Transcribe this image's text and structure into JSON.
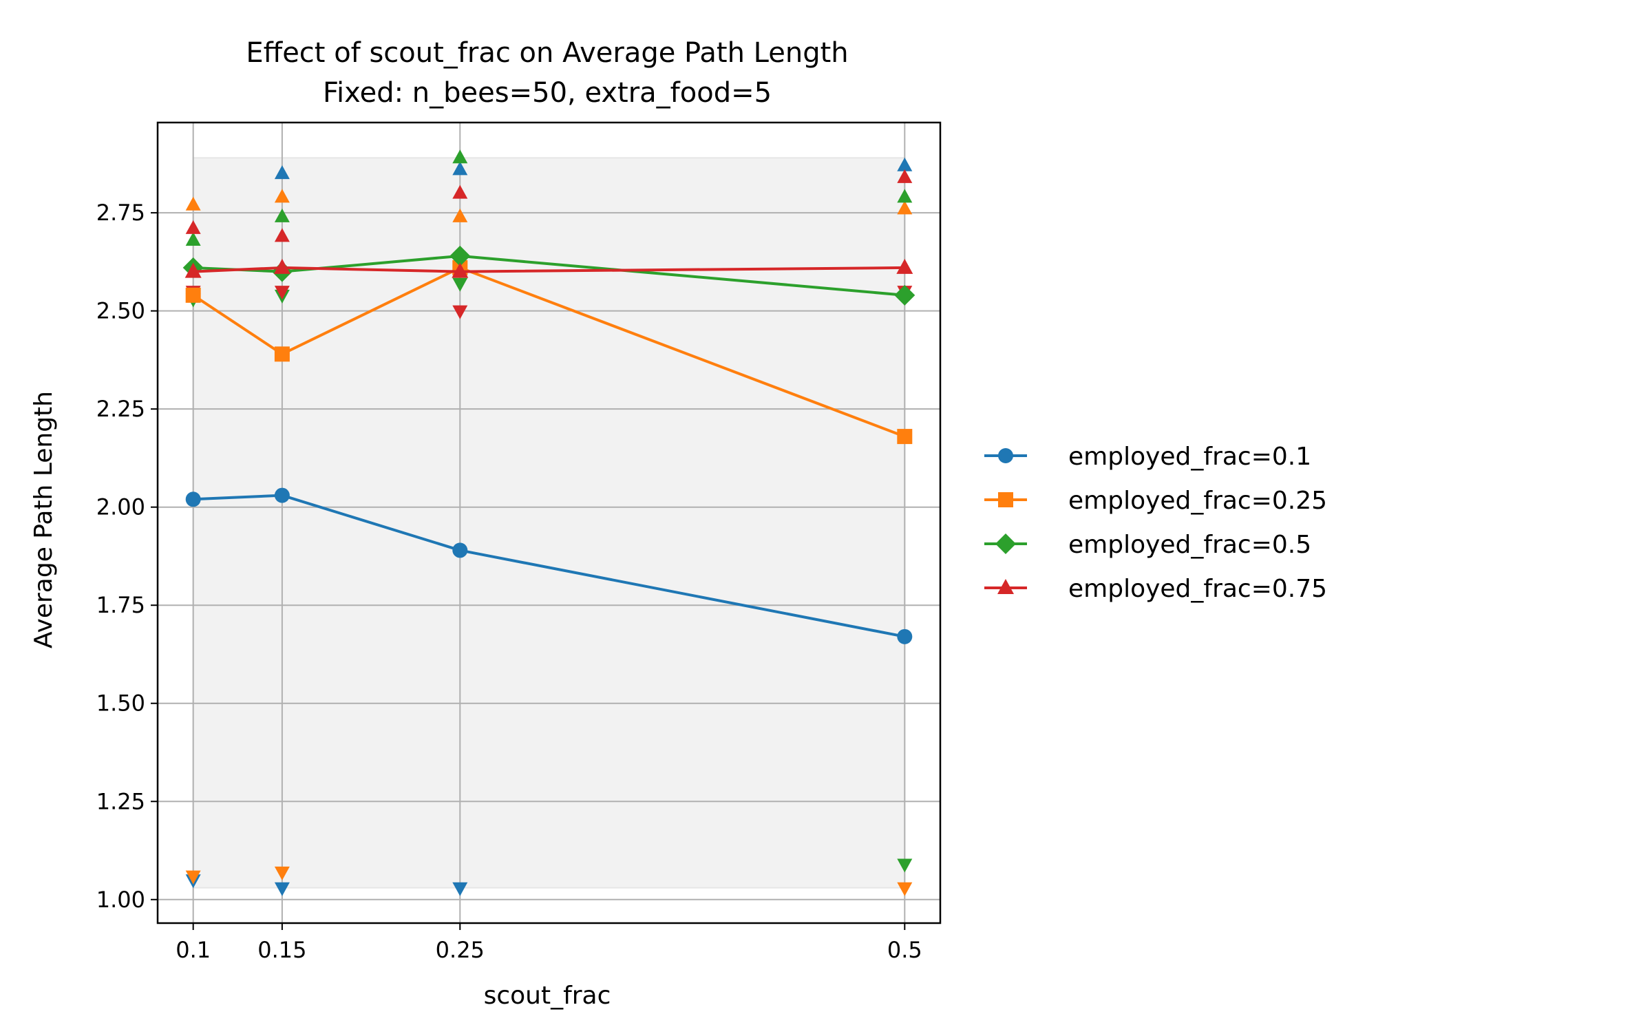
{
  "chart_data": {
    "type": "line",
    "title": "Effect of scout_frac on Average Path Length",
    "subtitle": "Fixed: n_bees=50, extra_food=5",
    "xlabel": "scout_frac",
    "ylabel": "Average Path Length",
    "x": [
      0.1,
      0.15,
      0.25,
      0.5
    ],
    "x_tick_labels": [
      "0.1",
      "0.15",
      "0.25",
      "0.5"
    ],
    "xlim": [
      0.08,
      0.52
    ],
    "ylim": [
      0.94,
      2.98
    ],
    "y_ticks": [
      1.0,
      1.25,
      1.5,
      1.75,
      2.0,
      2.25,
      2.5,
      2.75
    ],
    "y_tick_labels": [
      "1.00",
      "1.25",
      "1.50",
      "1.75",
      "2.00",
      "2.25",
      "2.50",
      "2.75"
    ],
    "grid": true,
    "legend_position": "right-outside",
    "shaded_band": {
      "x": [
        0.1,
        0.5
      ],
      "y": [
        1.03,
        2.89
      ]
    },
    "series": [
      {
        "name": "employed_frac=0.1",
        "color": "#1f77b4",
        "marker": "circle",
        "values": [
          2.02,
          2.03,
          1.89,
          1.67
        ],
        "max": [
          2.6,
          2.85,
          2.86,
          2.87
        ],
        "min": [
          1.05,
          1.03,
          1.03,
          null
        ]
      },
      {
        "name": "employed_frac=0.25",
        "color": "#ff7f0e",
        "marker": "square",
        "values": [
          2.54,
          2.39,
          2.61,
          2.18
        ],
        "max": [
          2.77,
          2.79,
          2.74,
          2.76
        ],
        "min": [
          1.06,
          1.07,
          null,
          1.03
        ]
      },
      {
        "name": "employed_frac=0.5",
        "color": "#2ca02c",
        "marker": "diamond",
        "values": [
          2.61,
          2.6,
          2.64,
          2.54
        ],
        "max": [
          2.68,
          2.74,
          2.89,
          2.79
        ],
        "min": [
          2.53,
          2.54,
          2.57,
          1.09
        ]
      },
      {
        "name": "employed_frac=0.75",
        "color": "#d62728",
        "marker": "triangle",
        "values": [
          2.6,
          2.61,
          2.6,
          2.61
        ],
        "max": [
          2.71,
          2.69,
          2.8,
          2.84
        ],
        "min": [
          2.55,
          2.55,
          2.5,
          2.55
        ]
      }
    ]
  }
}
